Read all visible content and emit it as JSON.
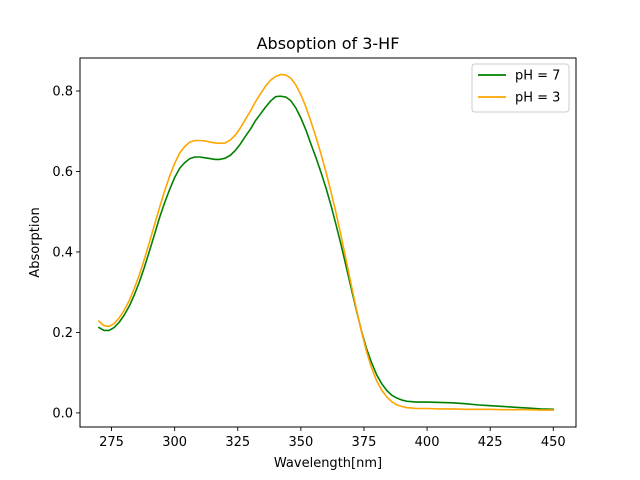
{
  "chart_data": {
    "type": "line",
    "title": "Absoption of 3-HF",
    "xlabel": "Wavelength[nm]",
    "ylabel": "Absorption",
    "xlim": [
      262.5,
      459.0
    ],
    "ylim": [
      -0.035,
      0.882
    ],
    "xticks": [
      275,
      300,
      325,
      350,
      375,
      400,
      425,
      450
    ],
    "yticks": [
      0.0,
      0.2,
      0.4,
      0.6,
      0.8
    ],
    "xtick_labels": [
      "275",
      "300",
      "325",
      "350",
      "375",
      "400",
      "425",
      "450"
    ],
    "ytick_labels": [
      "0.0",
      "0.2",
      "0.4",
      "0.6",
      "0.8"
    ],
    "grid": false,
    "legend_position": "top-right",
    "series": [
      {
        "name": "pH = 7",
        "color": "#008000",
        "x": [
          270,
          272,
          274,
          276,
          278,
          280,
          282,
          284,
          286,
          288,
          290,
          292,
          294,
          296,
          298,
          300,
          302,
          304,
          306,
          308,
          310,
          312,
          314,
          316,
          318,
          320,
          322,
          324,
          326,
          328,
          330,
          332,
          334,
          336,
          338,
          340,
          342,
          344,
          346,
          348,
          350,
          352,
          354,
          356,
          358,
          360,
          362,
          364,
          366,
          368,
          370,
          372,
          374,
          376,
          378,
          380,
          382,
          384,
          386,
          388,
          390,
          392,
          394,
          396,
          398,
          400,
          405,
          410,
          415,
          420,
          425,
          430,
          435,
          440,
          445,
          450
        ],
        "y": [
          0.212,
          0.205,
          0.205,
          0.212,
          0.225,
          0.243,
          0.265,
          0.293,
          0.325,
          0.362,
          0.402,
          0.443,
          0.485,
          0.522,
          0.555,
          0.585,
          0.608,
          0.622,
          0.632,
          0.636,
          0.636,
          0.634,
          0.632,
          0.63,
          0.63,
          0.633,
          0.64,
          0.652,
          0.668,
          0.687,
          0.705,
          0.726,
          0.743,
          0.76,
          0.775,
          0.786,
          0.787,
          0.785,
          0.776,
          0.758,
          0.733,
          0.703,
          0.668,
          0.634,
          0.597,
          0.558,
          0.514,
          0.466,
          0.416,
          0.362,
          0.308,
          0.255,
          0.204,
          0.16,
          0.125,
          0.095,
          0.073,
          0.056,
          0.044,
          0.037,
          0.032,
          0.029,
          0.028,
          0.027,
          0.027,
          0.027,
          0.026,
          0.025,
          0.023,
          0.02,
          0.018,
          0.016,
          0.014,
          0.012,
          0.01,
          0.009
        ]
      },
      {
        "name": "pH = 3",
        "color": "#ffa500",
        "x": [
          270,
          272,
          274,
          276,
          278,
          280,
          282,
          284,
          286,
          288,
          290,
          292,
          294,
          296,
          298,
          300,
          302,
          304,
          306,
          308,
          310,
          312,
          314,
          316,
          318,
          320,
          322,
          324,
          326,
          328,
          330,
          332,
          334,
          336,
          338,
          340,
          342,
          344,
          346,
          348,
          350,
          352,
          354,
          356,
          358,
          360,
          362,
          364,
          366,
          368,
          370,
          372,
          374,
          376,
          378,
          380,
          382,
          384,
          386,
          388,
          390,
          392,
          394,
          396,
          398,
          400,
          405,
          410,
          415,
          420,
          425,
          430,
          435,
          440,
          445,
          450
        ],
        "y": [
          0.228,
          0.217,
          0.215,
          0.222,
          0.236,
          0.255,
          0.279,
          0.309,
          0.343,
          0.382,
          0.424,
          0.467,
          0.51,
          0.551,
          0.588,
          0.62,
          0.646,
          0.662,
          0.673,
          0.677,
          0.677,
          0.676,
          0.673,
          0.671,
          0.67,
          0.671,
          0.678,
          0.69,
          0.708,
          0.729,
          0.75,
          0.773,
          0.793,
          0.812,
          0.827,
          0.836,
          0.841,
          0.84,
          0.832,
          0.815,
          0.791,
          0.76,
          0.724,
          0.685,
          0.643,
          0.597,
          0.548,
          0.495,
          0.438,
          0.378,
          0.317,
          0.258,
          0.202,
          0.153,
          0.112,
          0.08,
          0.057,
          0.04,
          0.028,
          0.02,
          0.016,
          0.013,
          0.012,
          0.011,
          0.011,
          0.011,
          0.01,
          0.01,
          0.009,
          0.009,
          0.009,
          0.008,
          0.008,
          0.008,
          0.007,
          0.007
        ]
      }
    ]
  }
}
